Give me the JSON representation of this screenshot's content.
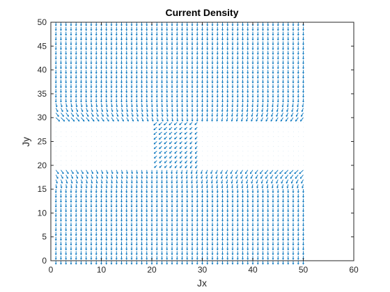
{
  "chart_data": {
    "type": "quiver",
    "title": "Current Density",
    "xlabel": "Jx",
    "ylabel": "Jy",
    "xlim": [
      0,
      60
    ],
    "ylim": [
      0,
      50
    ],
    "xticks": [
      0,
      10,
      20,
      30,
      40,
      50,
      60
    ],
    "yticks": [
      0,
      5,
      10,
      15,
      20,
      25,
      30,
      35,
      40,
      45,
      50
    ],
    "grid": false,
    "arrow_color": "#0072BD",
    "field": {
      "x_range": [
        1,
        50
      ],
      "y_range": [
        0,
        50
      ],
      "spacing": 1,
      "upper_region_y": [
        30,
        50
      ],
      "lower_region_y": [
        0,
        19
      ],
      "channel_x": [
        21,
        29
      ],
      "uniform_direction": "negative-y",
      "channel_direction": "diagonal, from top-right (x≈29,y≈30) to bottom-left (x≈21,y≈19)"
    }
  }
}
